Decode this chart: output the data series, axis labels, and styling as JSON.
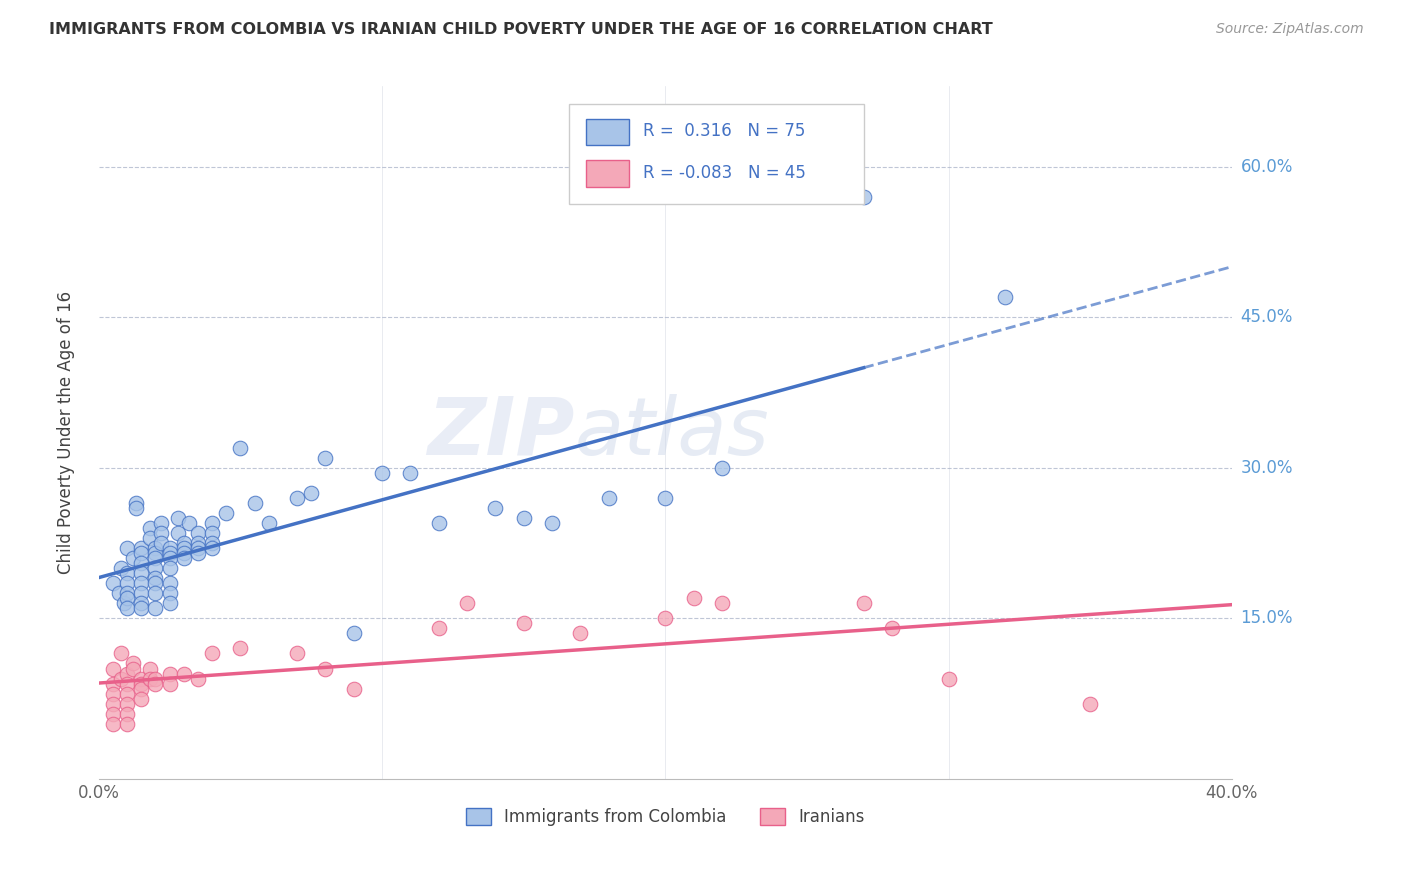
{
  "title": "IMMIGRANTS FROM COLOMBIA VS IRANIAN CHILD POVERTY UNDER THE AGE OF 16 CORRELATION CHART",
  "source": "Source: ZipAtlas.com",
  "ylabel": "Child Poverty Under the Age of 16",
  "ytick_labels": [
    "60.0%",
    "45.0%",
    "30.0%",
    "15.0%"
  ],
  "ytick_values": [
    0.6,
    0.45,
    0.3,
    0.15
  ],
  "xlim": [
    0.0,
    0.4
  ],
  "ylim": [
    -0.01,
    0.68
  ],
  "color_blue": "#A8C4E8",
  "color_pink": "#F4A8B8",
  "line_blue": "#4472C4",
  "line_pink": "#E8608A",
  "watermark_zip": "ZIP",
  "watermark_atlas": "atlas",
  "colombia_scatter": [
    [
      0.005,
      0.185
    ],
    [
      0.007,
      0.175
    ],
    [
      0.008,
      0.2
    ],
    [
      0.009,
      0.165
    ],
    [
      0.01,
      0.22
    ],
    [
      0.01,
      0.195
    ],
    [
      0.01,
      0.185
    ],
    [
      0.01,
      0.175
    ],
    [
      0.01,
      0.17
    ],
    [
      0.01,
      0.16
    ],
    [
      0.012,
      0.21
    ],
    [
      0.013,
      0.265
    ],
    [
      0.013,
      0.26
    ],
    [
      0.015,
      0.22
    ],
    [
      0.015,
      0.215
    ],
    [
      0.015,
      0.205
    ],
    [
      0.015,
      0.195
    ],
    [
      0.015,
      0.185
    ],
    [
      0.015,
      0.175
    ],
    [
      0.015,
      0.165
    ],
    [
      0.015,
      0.16
    ],
    [
      0.018,
      0.24
    ],
    [
      0.018,
      0.23
    ],
    [
      0.02,
      0.22
    ],
    [
      0.02,
      0.215
    ],
    [
      0.02,
      0.21
    ],
    [
      0.02,
      0.2
    ],
    [
      0.02,
      0.19
    ],
    [
      0.02,
      0.185
    ],
    [
      0.02,
      0.175
    ],
    [
      0.02,
      0.16
    ],
    [
      0.022,
      0.245
    ],
    [
      0.022,
      0.235
    ],
    [
      0.022,
      0.225
    ],
    [
      0.025,
      0.22
    ],
    [
      0.025,
      0.215
    ],
    [
      0.025,
      0.21
    ],
    [
      0.025,
      0.2
    ],
    [
      0.025,
      0.185
    ],
    [
      0.025,
      0.175
    ],
    [
      0.025,
      0.165
    ],
    [
      0.028,
      0.25
    ],
    [
      0.028,
      0.235
    ],
    [
      0.03,
      0.225
    ],
    [
      0.03,
      0.22
    ],
    [
      0.03,
      0.215
    ],
    [
      0.03,
      0.21
    ],
    [
      0.032,
      0.245
    ],
    [
      0.035,
      0.235
    ],
    [
      0.035,
      0.225
    ],
    [
      0.035,
      0.22
    ],
    [
      0.035,
      0.215
    ],
    [
      0.04,
      0.245
    ],
    [
      0.04,
      0.235
    ],
    [
      0.04,
      0.225
    ],
    [
      0.04,
      0.22
    ],
    [
      0.045,
      0.255
    ],
    [
      0.05,
      0.32
    ],
    [
      0.055,
      0.265
    ],
    [
      0.06,
      0.245
    ],
    [
      0.07,
      0.27
    ],
    [
      0.075,
      0.275
    ],
    [
      0.08,
      0.31
    ],
    [
      0.09,
      0.135
    ],
    [
      0.1,
      0.295
    ],
    [
      0.11,
      0.295
    ],
    [
      0.12,
      0.245
    ],
    [
      0.14,
      0.26
    ],
    [
      0.15,
      0.25
    ],
    [
      0.16,
      0.245
    ],
    [
      0.18,
      0.27
    ],
    [
      0.2,
      0.27
    ],
    [
      0.22,
      0.3
    ],
    [
      0.27,
      0.57
    ],
    [
      0.32,
      0.47
    ]
  ],
  "iran_scatter": [
    [
      0.005,
      0.1
    ],
    [
      0.005,
      0.085
    ],
    [
      0.005,
      0.075
    ],
    [
      0.005,
      0.065
    ],
    [
      0.005,
      0.055
    ],
    [
      0.005,
      0.045
    ],
    [
      0.008,
      0.115
    ],
    [
      0.008,
      0.09
    ],
    [
      0.01,
      0.095
    ],
    [
      0.01,
      0.085
    ],
    [
      0.01,
      0.075
    ],
    [
      0.01,
      0.065
    ],
    [
      0.01,
      0.055
    ],
    [
      0.01,
      0.045
    ],
    [
      0.012,
      0.105
    ],
    [
      0.012,
      0.1
    ],
    [
      0.015,
      0.09
    ],
    [
      0.015,
      0.085
    ],
    [
      0.015,
      0.08
    ],
    [
      0.015,
      0.07
    ],
    [
      0.018,
      0.1
    ],
    [
      0.018,
      0.09
    ],
    [
      0.02,
      0.09
    ],
    [
      0.02,
      0.085
    ],
    [
      0.025,
      0.095
    ],
    [
      0.025,
      0.085
    ],
    [
      0.03,
      0.095
    ],
    [
      0.035,
      0.09
    ],
    [
      0.04,
      0.115
    ],
    [
      0.05,
      0.12
    ],
    [
      0.07,
      0.115
    ],
    [
      0.08,
      0.1
    ],
    [
      0.09,
      0.08
    ],
    [
      0.12,
      0.14
    ],
    [
      0.13,
      0.165
    ],
    [
      0.15,
      0.145
    ],
    [
      0.17,
      0.135
    ],
    [
      0.2,
      0.15
    ],
    [
      0.21,
      0.17
    ],
    [
      0.22,
      0.165
    ],
    [
      0.27,
      0.165
    ],
    [
      0.28,
      0.14
    ],
    [
      0.3,
      0.09
    ],
    [
      0.35,
      0.065
    ]
  ]
}
